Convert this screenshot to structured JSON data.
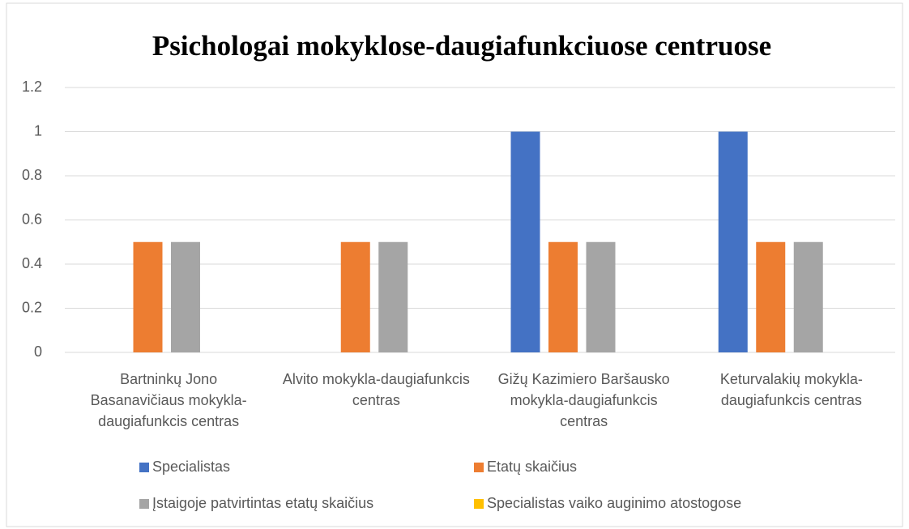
{
  "chart_data": {
    "type": "bar",
    "title": "Psichologai mokyklose-daugiafunkciuose centruose",
    "categories": [
      "Bartninkų Jono Basanavičiaus mokykla-daugiafunkcis centras",
      "Alvito mokykla-daugiafunkcis centras",
      "Gižų Kazimiero Baršausko mokykla-daugiafunkcis centras",
      "Keturvalakių mokykla-daugiafunkcis centras"
    ],
    "series": [
      {
        "name": "Specialistas",
        "color": "#4472c4",
        "values": [
          0,
          0,
          1,
          1
        ]
      },
      {
        "name": "Etatų skaičius",
        "color": "#ed7d31",
        "values": [
          0.5,
          0.5,
          0.5,
          0.5
        ]
      },
      {
        "name": "Įstaigoje patvirtintas etatų skaičius",
        "color": "#a5a5a5",
        "values": [
          0.5,
          0.5,
          0.5,
          0.5
        ]
      },
      {
        "name": "Specialistas vaiko auginimo atostogose",
        "color": "#ffc000",
        "values": [
          0,
          0,
          0,
          0
        ]
      }
    ],
    "ylim": [
      0,
      1.2
    ],
    "yticks": [
      0,
      0.2,
      0.4,
      0.6,
      0.8,
      1,
      1.2
    ],
    "grid": true,
    "legend": "bottom"
  }
}
